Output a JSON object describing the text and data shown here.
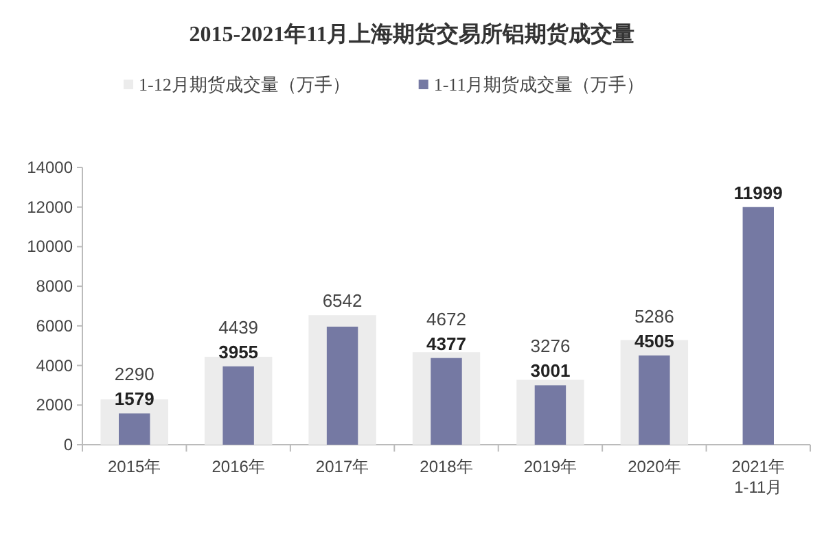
{
  "chart_data": {
    "type": "bar",
    "title": "2015-2021年11月上海期货交易所铝期货成交量",
    "categories": [
      "2015年",
      "2016年",
      "2017年",
      "2018年",
      "2019年",
      "2020年",
      "2021年\n1-11月"
    ],
    "series": [
      {
        "name": "1-12月期货成交量（万手）",
        "color": "#ececec",
        "values": [
          2290,
          4439,
          6542,
          4672,
          3276,
          5286,
          null
        ],
        "value_labels": [
          "2290",
          "4439",
          "6542",
          "4672",
          "3276",
          "5286",
          null
        ]
      },
      {
        "name": "1-11月期货成交量（万手）",
        "color": "#7579a3",
        "values": [
          1579,
          3955,
          5960,
          4377,
          3001,
          4505,
          11999
        ],
        "value_labels": [
          "1579",
          "3955",
          null,
          "4377",
          "3001",
          "4505",
          "11999"
        ]
      }
    ],
    "ylim": [
      0,
      14000
    ],
    "yticks": [
      0,
      2000,
      4000,
      6000,
      8000,
      10000,
      12000,
      14000
    ],
    "grid": false,
    "legend": "top"
  }
}
